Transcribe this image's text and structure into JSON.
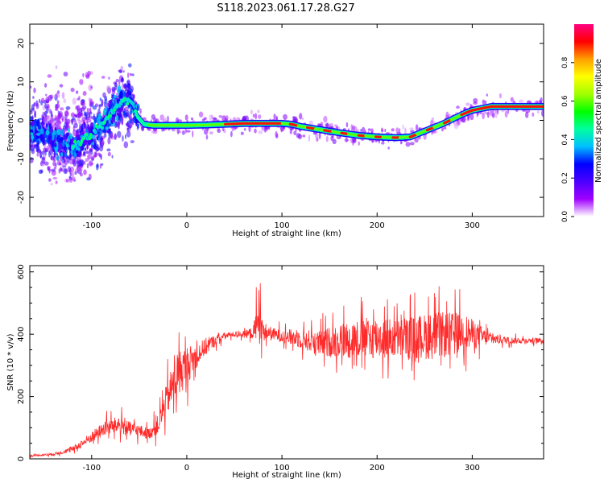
{
  "title": "S118.2023.061.17.28.G27",
  "colors": {
    "snr_line": "#ff2a2a",
    "frame": "#000000",
    "background": "#ffffff"
  },
  "chart_data": [
    {
      "type": "heatmap",
      "title": "S118.2023.061.17.28.G27",
      "xlabel": "Height of straight line (km)",
      "ylabel": "Frequency (Hz)",
      "xlim": [
        -165,
        375
      ],
      "ylim": [
        -25,
        25
      ],
      "x_ticks": [
        -100,
        0,
        100,
        200,
        300
      ],
      "y_ticks": [
        -20,
        -10,
        0,
        10,
        20
      ],
      "grid": false,
      "ridge": {
        "x": [
          -165,
          -150,
          -135,
          -120,
          -100,
          -85,
          -75,
          -65,
          -58,
          -52,
          -45,
          -35,
          -20,
          0,
          20,
          40,
          60,
          80,
          100,
          110,
          120,
          140,
          160,
          180,
          200,
          220,
          235,
          250,
          270,
          290,
          300,
          320,
          340,
          360,
          375
        ],
        "y": [
          -2,
          -4,
          -6,
          -7,
          -4,
          0,
          3,
          5.5,
          5,
          1,
          -1,
          -1.3,
          -1.3,
          -1.3,
          -1.2,
          -1,
          -0.8,
          -0.8,
          -0.8,
          -1,
          -1.6,
          -2.4,
          -3.2,
          -3.9,
          -4.3,
          -4.5,
          -4.3,
          -2.8,
          -0.8,
          1.6,
          2.6,
          3.6,
          3.6,
          3.6,
          3.6
        ]
      },
      "colorbar": {
        "label": "Normalized spectral amplitude",
        "range": [
          0,
          1
        ],
        "ticks": [
          "0.0",
          "0.2",
          "0.4",
          "0.6",
          "0.8"
        ],
        "tick_values": [
          0,
          0.2,
          0.4,
          0.6,
          0.8
        ],
        "colors": [
          "#ffffff",
          "#a000ff",
          "#4a00ff",
          "#0000ff",
          "#00c0ff",
          "#00ffa0",
          "#00ff00",
          "#a0ff00",
          "#ffff00",
          "#ffa000",
          "#ff0000",
          "#ff0080"
        ]
      }
    },
    {
      "type": "line",
      "xlabel": "Height of straight line (km)",
      "ylabel": "SNR (10 * v/v)",
      "xlim": [
        -165,
        375
      ],
      "ylim": [
        0,
        620
      ],
      "x_ticks": [
        -100,
        0,
        100,
        200,
        300
      ],
      "y_ticks": [
        0,
        200,
        400,
        600
      ],
      "grid": false,
      "series": [
        {
          "x": [
            -165,
            -140,
            -120,
            -100,
            -85,
            -70,
            -60,
            -50,
            -40,
            -30,
            -20,
            -10,
            0,
            10,
            20,
            30,
            40,
            50,
            60,
            70,
            75,
            80,
            90,
            100,
            120,
            140,
            160,
            180,
            200,
            220,
            240,
            260,
            280,
            290,
            300,
            320,
            340,
            360,
            375
          ],
          "y": [
            10,
            15,
            30,
            70,
            100,
            110,
            95,
            90,
            80,
            110,
            200,
            270,
            300,
            330,
            360,
            380,
            395,
            400,
            400,
            405,
            440,
            410,
            400,
            395,
            385,
            370,
            380,
            385,
            390,
            385,
            390,
            395,
            400,
            410,
            400,
            385,
            380,
            380,
            380
          ],
          "noise": [
            3,
            6,
            12,
            25,
            35,
            40,
            35,
            30,
            25,
            45,
            80,
            110,
            90,
            55,
            40,
            25,
            15,
            12,
            15,
            30,
            110,
            45,
            30,
            30,
            45,
            60,
            80,
            90,
            100,
            90,
            100,
            110,
            100,
            85,
            70,
            25,
            15,
            12,
            12
          ]
        }
      ]
    }
  ]
}
